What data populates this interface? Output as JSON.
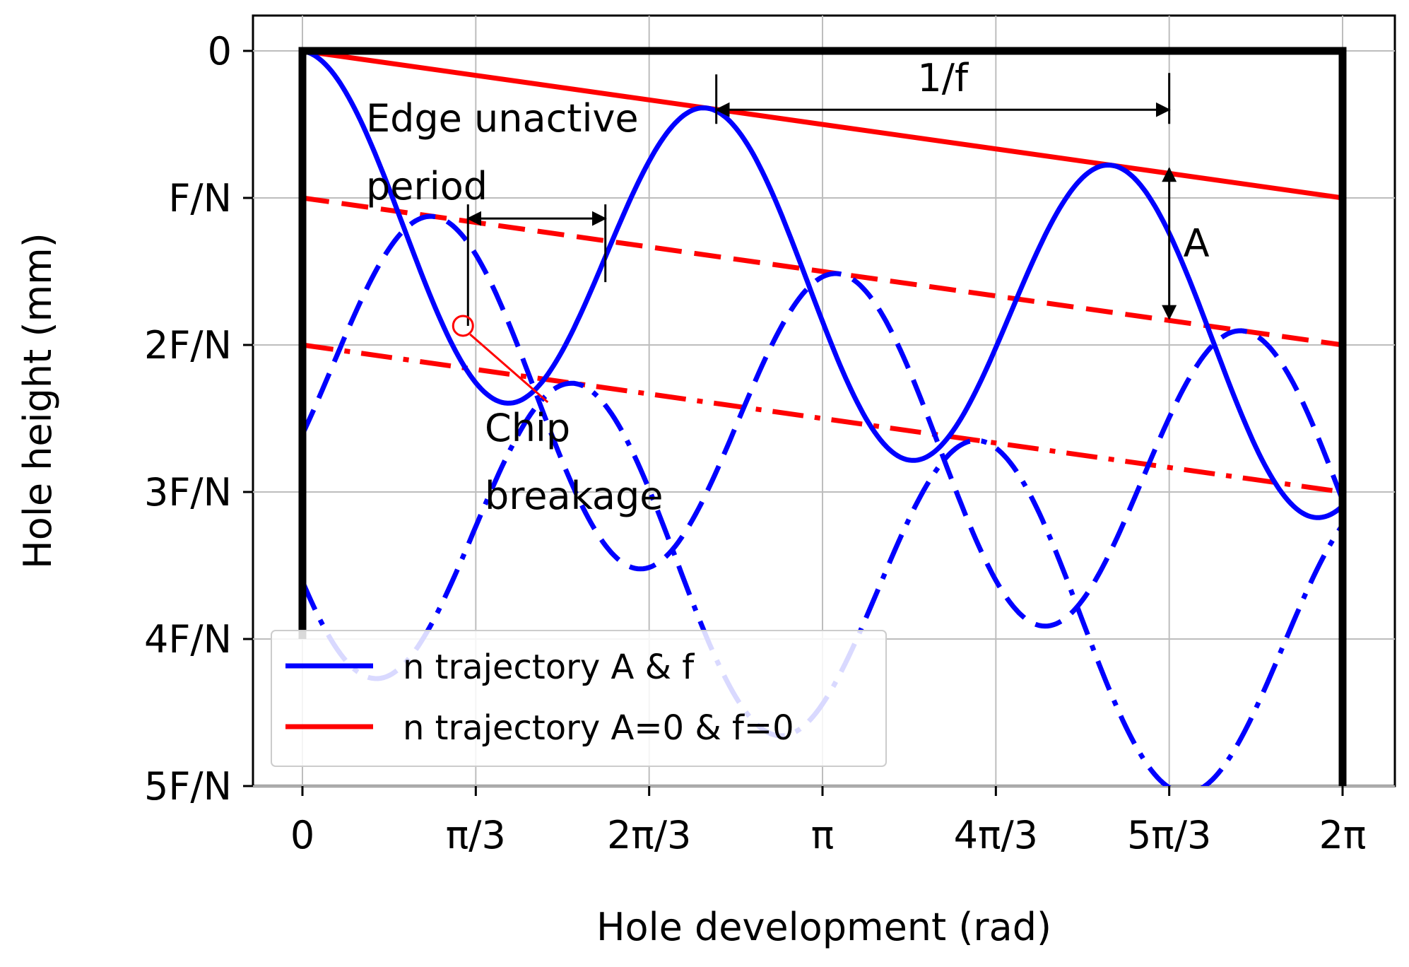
{
  "colors": {
    "blue": "#0000ff",
    "red": "#ff0000",
    "black": "#000000",
    "grid": "#bdbdbd"
  },
  "chart_data": {
    "type": "line",
    "title": "",
    "xlabel": "Hole development (rad)",
    "ylabel": "Hole height (mm)",
    "xlim": [
      0,
      6.2832
    ],
    "ylim": [
      5,
      0
    ],
    "y_unit_note": "y values in units of F/N (0 at top, 5F/N at bottom)",
    "grid": true,
    "xticks": [
      {
        "value": 0,
        "label": "0"
      },
      {
        "value": 1.0472,
        "label": "π/3"
      },
      {
        "value": 2.0944,
        "label": "2π/3"
      },
      {
        "value": 3.1416,
        "label": "π"
      },
      {
        "value": 4.1888,
        "label": "4π/3"
      },
      {
        "value": 5.236,
        "label": "5π/3"
      },
      {
        "value": 6.2832,
        "label": "2π"
      }
    ],
    "yticks": [
      {
        "value": 0,
        "label": "0"
      },
      {
        "value": 1,
        "label": "F/N"
      },
      {
        "value": 2,
        "label": "2F/N"
      },
      {
        "value": 3,
        "label": "3F/N"
      },
      {
        "value": 4,
        "label": "4F/N"
      },
      {
        "value": 5,
        "label": "5F/N"
      }
    ],
    "oscillation": {
      "amplitude": 1.1,
      "cycles": 2.57
    },
    "series": [
      {
        "name": "trajectory 1 (oscillating)",
        "color": "blue",
        "style": "solid",
        "offset": 0,
        "phase_rad": 0
      },
      {
        "name": "trajectory 2 (oscillating)",
        "color": "blue",
        "style": "dashed",
        "offset": 1,
        "phase_rad": -2.05
      },
      {
        "name": "trajectory 3 (oscillating)",
        "color": "blue",
        "style": "dashdot",
        "offset": 2,
        "phase_rad": 2.05
      },
      {
        "name": "trajectory 1 (no oscillation)",
        "color": "red",
        "style": "solid",
        "y_start": 0,
        "y_end": 1
      },
      {
        "name": "trajectory 2 (no oscillation)",
        "color": "red",
        "style": "dashed",
        "y_start": 1,
        "y_end": 2
      },
      {
        "name": "trajectory 3 (no oscillation)",
        "color": "red",
        "style": "dashdot",
        "y_start": 2,
        "y_end": 3
      }
    ],
    "hole_wall": {
      "x_left": 0,
      "x_right": 6.2832,
      "y_top": 0,
      "y_left_bottom": 4,
      "y_right_bottom": 5
    },
    "annotations": {
      "period_label": "1/f",
      "period_x": [
        2.5,
        5.236
      ],
      "period_y": 0.4,
      "amplitude_label": "A",
      "amplitude_x": 5.236,
      "amplitude_y": [
        0.8,
        1.82
      ],
      "unactive_label_line1": "Edge unactive",
      "unactive_label_line2": "period",
      "unactive_x": [
        1.0,
        1.83
      ],
      "unactive_y": 1.14,
      "chip_label_line1": "Chip",
      "chip_label_line2": "breakage",
      "chip_point": [
        0.97,
        1.87
      ]
    },
    "legend": {
      "position": "lower-left",
      "entries": [
        {
          "label": "n trajectory A & f",
          "color": "blue"
        },
        {
          "label": "n trajectory A=0 & f=0",
          "color": "red"
        }
      ]
    }
  }
}
